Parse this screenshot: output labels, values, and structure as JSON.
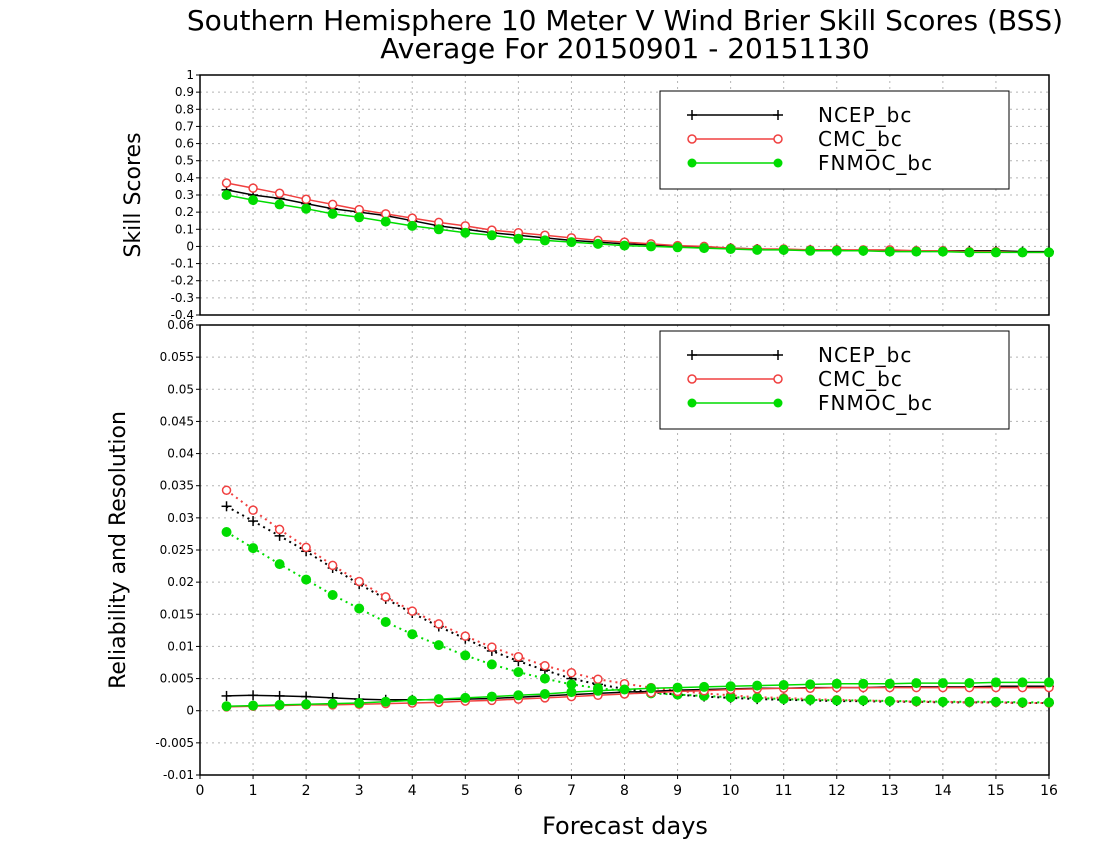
{
  "figure": {
    "title_line1": "Southern Hemisphere 10 Meter V Wind Brier Skill Scores (BSS)",
    "title_line2": "Average For 20150901 - 20151130",
    "xlabel": "Forecast days",
    "x_ticks": [
      "0",
      "1",
      "2",
      "3",
      "4",
      "5",
      "6",
      "7",
      "8",
      "9",
      "10",
      "11",
      "12",
      "13",
      "14",
      "15",
      "16"
    ]
  },
  "colors": {
    "NCEP_bc": "#000000",
    "CMC_bc": "#f04040",
    "FNMOC_bc": "#00dc00"
  },
  "chart_data": [
    {
      "type": "line",
      "panel": "top",
      "ylabel": "Skill Scores",
      "xlim": [
        0,
        16
      ],
      "ylim": [
        -0.4,
        1
      ],
      "y_ticks": [
        "1",
        "0.9",
        "0.8",
        "0.7",
        "0.6",
        "0.5",
        "0.4",
        "0.3",
        "0.2",
        "0.1",
        "0",
        "-0.1",
        "-0.2",
        "-0.3",
        "-0.4"
      ],
      "grid": true,
      "legend_position": "top-right",
      "x": [
        0.5,
        1,
        1.5,
        2,
        2.5,
        3,
        3.5,
        4,
        4.5,
        5,
        5.5,
        6,
        6.5,
        7,
        7.5,
        8,
        8.5,
        9,
        9.5,
        10,
        10.5,
        11,
        11.5,
        12,
        12.5,
        13,
        13.5,
        14,
        14.5,
        15,
        15.5,
        16
      ],
      "series": [
        {
          "name": "NCEP_bc",
          "marker": "plus",
          "values": [
            0.33,
            0.3,
            0.28,
            0.25,
            0.22,
            0.2,
            0.18,
            0.15,
            0.12,
            0.1,
            0.08,
            0.065,
            0.05,
            0.035,
            0.025,
            0.015,
            0.01,
            0.0,
            -0.005,
            -0.01,
            -0.015,
            -0.02,
            -0.02,
            -0.02,
            -0.025,
            -0.025,
            -0.025,
            -0.025,
            -0.025,
            -0.025,
            -0.03,
            -0.03
          ]
        },
        {
          "name": "CMC_bc",
          "marker": "open-circle",
          "values": [
            0.37,
            0.34,
            0.31,
            0.275,
            0.245,
            0.215,
            0.19,
            0.165,
            0.14,
            0.12,
            0.095,
            0.08,
            0.065,
            0.05,
            0.035,
            0.025,
            0.015,
            0.005,
            0.0,
            -0.01,
            -0.015,
            -0.015,
            -0.02,
            -0.02,
            -0.02,
            -0.02,
            -0.025,
            -0.025,
            -0.03,
            -0.03,
            -0.035,
            -0.035
          ]
        },
        {
          "name": "FNMOC_bc",
          "marker": "filled-circle",
          "values": [
            0.3,
            0.27,
            0.245,
            0.22,
            0.19,
            0.17,
            0.145,
            0.12,
            0.1,
            0.08,
            0.065,
            0.045,
            0.035,
            0.025,
            0.015,
            0.005,
            0.0,
            -0.005,
            -0.01,
            -0.015,
            -0.02,
            -0.02,
            -0.025,
            -0.025,
            -0.025,
            -0.03,
            -0.03,
            -0.03,
            -0.035,
            -0.035,
            -0.035,
            -0.035
          ]
        }
      ]
    },
    {
      "type": "line",
      "panel": "bottom",
      "ylabel": "Reliability and Resolution",
      "xlabel": "Forecast days",
      "xlim": [
        0,
        16
      ],
      "ylim": [
        -0.01,
        0.06
      ],
      "y_ticks": [
        "0.06",
        "0.055",
        "0.05",
        "0.045",
        "0.04",
        "0.035",
        "0.03",
        "0.025",
        "0.02",
        "0.015",
        "0.01",
        "0.005",
        "0",
        "-0.005",
        "-0.01"
      ],
      "grid": true,
      "legend_position": "top-right",
      "x": [
        0.5,
        1,
        1.5,
        2,
        2.5,
        3,
        3.5,
        4,
        4.5,
        5,
        5.5,
        6,
        6.5,
        7,
        7.5,
        8,
        8.5,
        9,
        9.5,
        10,
        10.5,
        11,
        11.5,
        12,
        12.5,
        13,
        13.5,
        14,
        14.5,
        15,
        15.5,
        16
      ],
      "series": [
        {
          "name": "NCEP_bc",
          "component": "reliability",
          "style": "solid",
          "marker": "plus",
          "values": [
            0.0023,
            0.0024,
            0.0023,
            0.0022,
            0.002,
            0.0018,
            0.0017,
            0.0017,
            0.0017,
            0.0018,
            0.0019,
            0.0021,
            0.0023,
            0.0025,
            0.0027,
            0.0029,
            0.003,
            0.0032,
            0.0033,
            0.0034,
            0.0035,
            0.0035,
            0.0036,
            0.0036,
            0.0036,
            0.0037,
            0.0037,
            0.0037,
            0.0037,
            0.0038,
            0.0038,
            0.0038
          ]
        },
        {
          "name": "CMC_bc",
          "component": "reliability",
          "style": "solid",
          "marker": "open-circle",
          "values": [
            0.0006,
            0.0007,
            0.0008,
            0.0009,
            0.0009,
            0.001,
            0.0011,
            0.0012,
            0.0013,
            0.0015,
            0.0016,
            0.0018,
            0.002,
            0.0022,
            0.0024,
            0.0026,
            0.0028,
            0.003,
            0.0031,
            0.0033,
            0.0034,
            0.0035,
            0.0035,
            0.0036,
            0.0036,
            0.0036,
            0.0036,
            0.0036,
            0.0036,
            0.0036,
            0.0036,
            0.0036
          ]
        },
        {
          "name": "FNMOC_bc",
          "component": "reliability",
          "style": "solid",
          "marker": "filled-circle",
          "values": [
            0.0007,
            0.0008,
            0.0009,
            0.001,
            0.0011,
            0.0012,
            0.0014,
            0.0016,
            0.0018,
            0.002,
            0.0022,
            0.0024,
            0.0026,
            0.0029,
            0.0031,
            0.0033,
            0.0035,
            0.0036,
            0.0037,
            0.0038,
            0.0039,
            0.004,
            0.0041,
            0.0042,
            0.0042,
            0.0042,
            0.0043,
            0.0043,
            0.0043,
            0.0044,
            0.0044,
            0.0044
          ]
        },
        {
          "name": "NCEP_bc",
          "component": "resolution",
          "style": "dotted",
          "marker": "plus",
          "values": [
            0.0318,
            0.0295,
            0.0272,
            0.0248,
            0.0222,
            0.0197,
            0.0174,
            0.0152,
            0.0131,
            0.0112,
            0.0093,
            0.0077,
            0.0063,
            0.005,
            0.0041,
            0.0034,
            0.0029,
            0.0025,
            0.0022,
            0.002,
            0.0018,
            0.0017,
            0.0016,
            0.0015,
            0.0015,
            0.0014,
            0.0014,
            0.0013,
            0.0013,
            0.0013,
            0.0012,
            0.0012
          ]
        },
        {
          "name": "CMC_bc",
          "component": "resolution",
          "style": "dotted",
          "marker": "open-circle",
          "values": [
            0.0343,
            0.0312,
            0.0282,
            0.0254,
            0.0226,
            0.0201,
            0.0177,
            0.0155,
            0.0135,
            0.0116,
            0.0099,
            0.0084,
            0.007,
            0.0059,
            0.0049,
            0.0042,
            0.0036,
            0.0031,
            0.0027,
            0.0024,
            0.0021,
            0.002,
            0.0018,
            0.0017,
            0.0016,
            0.0015,
            0.0014,
            0.0014,
            0.0013,
            0.0013,
            0.0012,
            0.0012
          ]
        },
        {
          "name": "FNMOC_bc",
          "component": "resolution",
          "style": "dotted",
          "marker": "filled-circle",
          "values": [
            0.0278,
            0.0253,
            0.0228,
            0.0204,
            0.018,
            0.0159,
            0.0138,
            0.0119,
            0.0102,
            0.0086,
            0.0072,
            0.006,
            0.005,
            0.0041,
            0.0035,
            0.0031,
            0.0027,
            0.0025,
            0.0023,
            0.0021,
            0.002,
            0.0018,
            0.0017,
            0.0016,
            0.0016,
            0.0015,
            0.0015,
            0.0014,
            0.0014,
            0.0014,
            0.0013,
            0.0013
          ]
        }
      ]
    }
  ],
  "legend": {
    "entries": [
      "NCEP_bc",
      "CMC_bc",
      "FNMOC_bc"
    ]
  }
}
